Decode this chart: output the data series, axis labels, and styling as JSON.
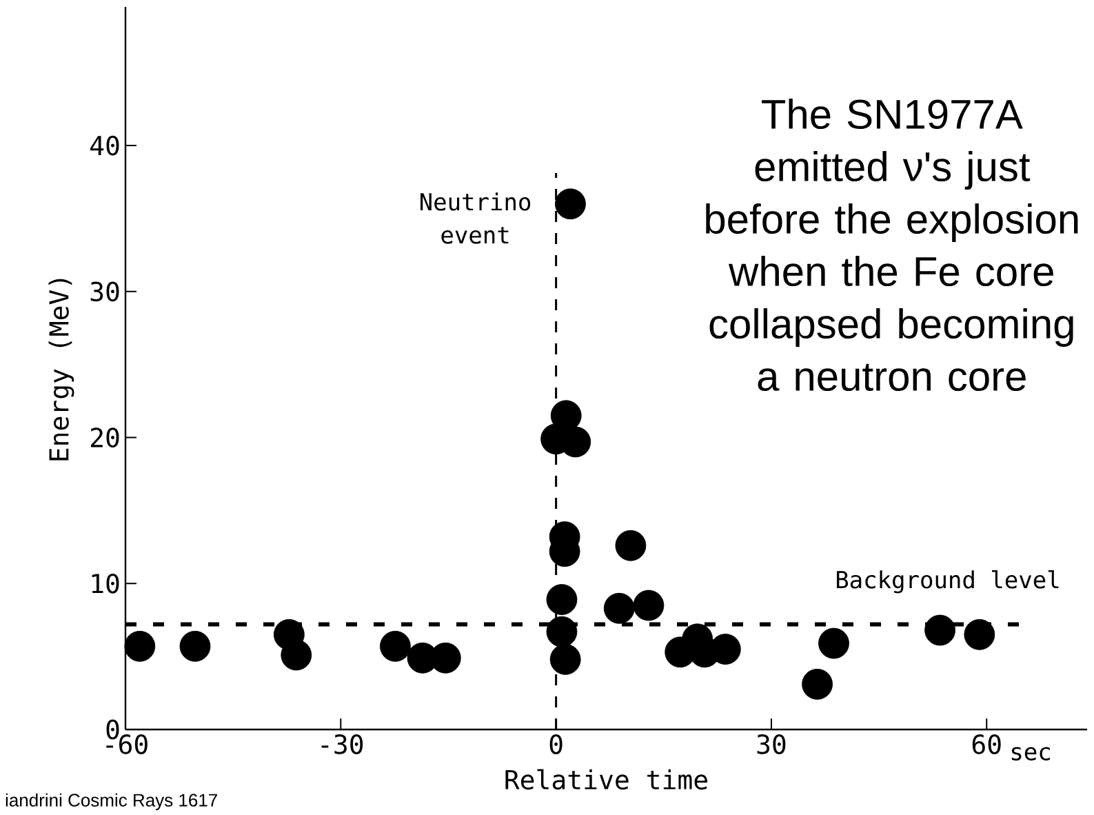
{
  "chart_data": {
    "type": "scatter",
    "xlabel": "Relative time",
    "ylabel": "Energy (MeV)",
    "xlim": [
      -60,
      74
    ],
    "ylim": [
      0,
      49.5
    ],
    "xticks": [
      -60,
      -30,
      0,
      30,
      60
    ],
    "yticks": [
      0,
      10,
      20,
      30,
      40
    ],
    "marker": "circle",
    "series": [
      {
        "color": "#000000",
        "x": [
          -58.0,
          -50.3,
          -37.2,
          -36.2,
          -22.4,
          -18.6,
          -15.4,
          2.0,
          1.4,
          0.0,
          2.7,
          1.2,
          1.2,
          0.8,
          0.8,
          1.3,
          10.4,
          8.8,
          12.9,
          17.3,
          19.7,
          20.7,
          23.6,
          36.4,
          38.7,
          53.5,
          59.0
        ],
        "values": [
          5.7,
          5.7,
          6.5,
          5.1,
          5.7,
          4.9,
          4.9,
          36.0,
          21.5,
          19.9,
          19.7,
          13.2,
          12.2,
          8.9,
          6.7,
          4.8,
          12.6,
          8.3,
          8.5,
          5.3,
          6.2,
          5.3,
          5.5,
          3.1,
          5.9,
          6.8,
          6.5
        ]
      }
    ],
    "ref_lines": [
      {
        "axis": "x",
        "value": 0,
        "label": "Neutrino event",
        "color": "#000000",
        "line_style": "dashed"
      },
      {
        "axis": "y",
        "value": 7.2,
        "label": "Background level",
        "color": "#000000",
        "line_style": "dashed"
      }
    ],
    "annotations": [
      "The SN1977A emitted ν's just before the explosion when the Fe core collapsed becoming a neutron core",
      "sec",
      "iandrini Cosmic Rays 1617"
    ]
  }
}
